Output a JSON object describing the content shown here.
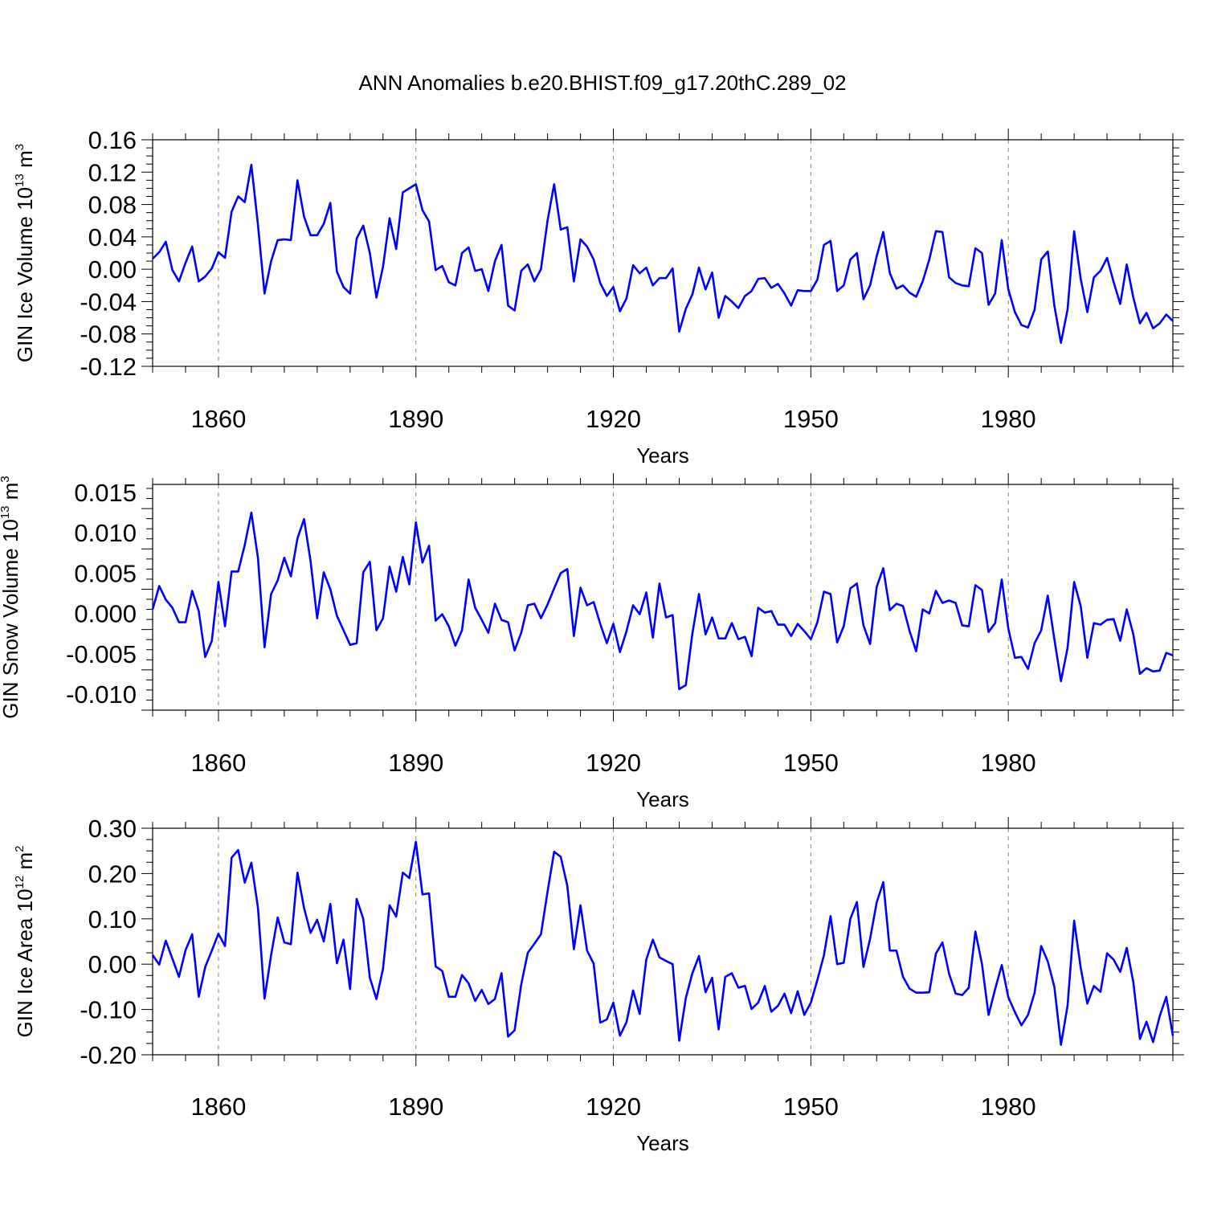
{
  "title": "ANN Anomalies b.e20.BHIST.f09_g17.20thC.289_02",
  "colors": {
    "line": "#0000ff",
    "axis": "#000000",
    "grid": "#888888"
  },
  "chart_data": [
    {
      "type": "line",
      "id": "ice-volume",
      "ylabel_main": "GIN Ice Volume 10",
      "ylabel_exp": "13",
      "ylabel_unit": " m",
      "ylabel_unit_exp": "3",
      "xlabel": "Years",
      "xlim": [
        1850,
        2005
      ],
      "ylim": [
        -0.12,
        0.16
      ],
      "yticks": [
        -0.12,
        -0.08,
        -0.04,
        0.0,
        0.04,
        0.08,
        0.12,
        0.16
      ],
      "ytick_labels": [
        "-0.12",
        "-0.08",
        "-0.04",
        "0.00",
        "0.04",
        "0.08",
        "0.12",
        "0.16"
      ],
      "xticks": [
        1860,
        1890,
        1920,
        1950,
        1980
      ],
      "xtick_labels": [
        "1860",
        "1890",
        "1920",
        "1950",
        "1980"
      ],
      "x_start": 1850,
      "values": [
        0.013,
        0.021,
        0.034,
        -0.001,
        -0.015,
        0.008,
        0.028,
        -0.015,
        -0.009,
        0.001,
        0.021,
        0.014,
        0.071,
        0.09,
        0.083,
        0.129,
        0.055,
        -0.03,
        0.01,
        0.036,
        0.037,
        0.036,
        0.11,
        0.065,
        0.042,
        0.042,
        0.056,
        0.082,
        -0.003,
        -0.022,
        -0.03,
        0.038,
        0.054,
        0.02,
        -0.035,
        0.003,
        0.063,
        0.025,
        0.095,
        0.1,
        0.105,
        0.073,
        0.059,
        -0.001,
        0.004,
        -0.016,
        -0.02,
        0.02,
        0.027,
        -0.002,
        0.0,
        -0.027,
        0.01,
        0.03,
        -0.045,
        -0.051,
        -0.002,
        0.006,
        -0.015,
        0.0,
        0.06,
        0.105,
        0.049,
        0.052,
        -0.015,
        0.037,
        0.028,
        0.012,
        -0.017,
        -0.033,
        -0.022,
        -0.052,
        -0.036,
        0.005,
        -0.005,
        0.002,
        -0.02,
        -0.011,
        -0.011,
        0.001,
        -0.077,
        -0.049,
        -0.031,
        0.002,
        -0.025,
        -0.004,
        -0.06,
        -0.033,
        -0.04,
        -0.048,
        -0.033,
        -0.027,
        -0.012,
        -0.011,
        -0.023,
        -0.018,
        -0.03,
        -0.045,
        -0.026,
        -0.027,
        -0.027,
        -0.013,
        0.03,
        0.035,
        -0.027,
        -0.02,
        0.012,
        0.02,
        -0.037,
        -0.02,
        0.016,
        0.046,
        -0.005,
        -0.024,
        -0.02,
        -0.029,
        -0.034,
        -0.015,
        0.012,
        0.047,
        0.046,
        -0.01,
        -0.017,
        -0.02,
        -0.021,
        0.026,
        0.02,
        -0.044,
        -0.03,
        0.036,
        -0.025,
        -0.053,
        -0.069,
        -0.072,
        -0.05,
        0.012,
        0.022,
        -0.045,
        -0.091,
        -0.05,
        0.047,
        -0.012,
        -0.053,
        -0.01,
        -0.002,
        0.014,
        -0.016,
        -0.043,
        0.006,
        -0.035,
        -0.067,
        -0.054,
        -0.073,
        -0.067,
        -0.056,
        -0.064
      ]
    },
    {
      "type": "line",
      "id": "snow-volume",
      "ylabel_main": "GIN Snow Volume 10",
      "ylabel_exp": "13",
      "ylabel_unit": " m",
      "ylabel_unit_exp": "3",
      "xlabel": "Years",
      "xlim": [
        1850,
        2005
      ],
      "ylim": [
        -0.012,
        0.016
      ],
      "yticks": [
        -0.01,
        -0.005,
        0.0,
        0.005,
        0.01,
        0.015
      ],
      "ytick_labels": [
        "-0.010",
        "-0.005",
        "0.000",
        "0.005",
        "0.010",
        "0.015"
      ],
      "xticks": [
        1860,
        1890,
        1920,
        1950,
        1980
      ],
      "xtick_labels": [
        "1860",
        "1890",
        "1920",
        "1950",
        "1980"
      ],
      "x_start": 1850,
      "values": [
        0.0005,
        0.0034,
        0.0017,
        0.0007,
        -0.0011,
        -0.0011,
        0.0028,
        0.0003,
        -0.0054,
        -0.0034,
        0.0039,
        -0.0016,
        0.0052,
        0.0052,
        0.0085,
        0.0125,
        0.0069,
        -0.0042,
        0.0024,
        0.0041,
        0.0069,
        0.0046,
        0.0093,
        0.0117,
        0.0065,
        -0.0006,
        0.0051,
        0.003,
        -0.0003,
        -0.0021,
        -0.0039,
        -0.0037,
        0.0051,
        0.0064,
        -0.0021,
        -0.0006,
        0.0058,
        0.0027,
        0.007,
        0.0036,
        0.0113,
        0.0063,
        0.0084,
        -0.0009,
        -0.0001,
        -0.0016,
        -0.004,
        -0.0021,
        0.0042,
        0.0007,
        -0.0008,
        -0.0024,
        0.0012,
        -0.0008,
        -0.0011,
        -0.0046,
        -0.0024,
        0.001,
        0.0012,
        -0.0006,
        0.0011,
        0.0031,
        0.005,
        0.0055,
        -0.0028,
        0.0032,
        0.001,
        0.0014,
        -0.0013,
        -0.0037,
        -0.0013,
        -0.0048,
        -0.0022,
        0.001,
        -0.0001,
        0.0026,
        -0.003,
        0.0037,
        -0.0005,
        -0.0002,
        -0.0094,
        -0.0089,
        -0.0025,
        0.0024,
        -0.0026,
        -0.0005,
        -0.0031,
        -0.0031,
        -0.0012,
        -0.0032,
        -0.0029,
        -0.0053,
        0.0007,
        0.0001,
        0.0003,
        -0.0014,
        -0.0014,
        -0.0028,
        -0.0013,
        -0.0022,
        -0.0032,
        -0.0011,
        0.0027,
        0.0024,
        -0.0036,
        -0.0016,
        0.0031,
        0.0037,
        -0.0015,
        -0.0038,
        0.0033,
        0.0056,
        0.0004,
        0.0012,
        0.0009,
        -0.0022,
        -0.0047,
        0.0005,
        0.0,
        0.0028,
        0.0013,
        0.0016,
        0.0013,
        -0.0015,
        -0.0016,
        0.0035,
        0.0029,
        -0.0023,
        -0.0012,
        0.0042,
        -0.0019,
        -0.0055,
        -0.0054,
        -0.0069,
        -0.0037,
        -0.0021,
        0.0022,
        -0.0032,
        -0.0084,
        -0.0043,
        0.0039,
        0.0009,
        -0.0055,
        -0.0012,
        -0.0014,
        -0.0008,
        -0.0007,
        -0.0034,
        0.0005,
        -0.0026,
        -0.0075,
        -0.0068,
        -0.0072,
        -0.0071,
        -0.0049,
        -0.0052
      ]
    },
    {
      "type": "line",
      "id": "ice-area",
      "ylabel_main": "GIN Ice Area 10",
      "ylabel_exp": "12",
      "ylabel_unit": " m",
      "ylabel_unit_exp": "2",
      "xlabel": "Years",
      "xlim": [
        1850,
        2005
      ],
      "ylim": [
        -0.2,
        0.3
      ],
      "yticks": [
        -0.2,
        -0.1,
        0.0,
        0.1,
        0.2,
        0.3
      ],
      "ytick_labels": [
        "-0.20",
        "-0.10",
        "0.00",
        "0.10",
        "0.20",
        "0.30"
      ],
      "xticks": [
        1860,
        1890,
        1920,
        1950,
        1980
      ],
      "xtick_labels": [
        "1860",
        "1890",
        "1920",
        "1950",
        "1980"
      ],
      "x_start": 1850,
      "values": [
        0.02,
        -0.001,
        0.052,
        0.012,
        -0.028,
        0.031,
        0.066,
        -0.072,
        -0.006,
        0.03,
        0.067,
        0.04,
        0.235,
        0.252,
        0.18,
        0.224,
        0.125,
        -0.076,
        0.02,
        0.103,
        0.048,
        0.044,
        0.202,
        0.124,
        0.069,
        0.098,
        0.05,
        0.133,
        0.002,
        0.054,
        -0.055,
        0.144,
        0.1,
        -0.03,
        -0.077,
        -0.01,
        0.13,
        0.105,
        0.202,
        0.19,
        0.27,
        0.154,
        0.156,
        -0.005,
        -0.015,
        -0.072,
        -0.072,
        -0.024,
        -0.042,
        -0.081,
        -0.057,
        -0.088,
        -0.077,
        -0.02,
        -0.16,
        -0.146,
        -0.045,
        0.025,
        0.045,
        0.066,
        0.16,
        0.248,
        0.237,
        0.173,
        0.033,
        0.13,
        0.03,
        0.001,
        -0.129,
        -0.122,
        -0.085,
        -0.158,
        -0.128,
        -0.058,
        -0.11,
        0.01,
        0.054,
        0.015,
        0.007,
        0.0,
        -0.169,
        -0.075,
        -0.02,
        0.018,
        -0.062,
        -0.03,
        -0.144,
        -0.028,
        -0.02,
        -0.052,
        -0.048,
        -0.099,
        -0.085,
        -0.048,
        -0.105,
        -0.092,
        -0.065,
        -0.108,
        -0.06,
        -0.112,
        -0.085,
        -0.035,
        0.02,
        0.106,
        0.0,
        0.003,
        0.1,
        0.137,
        -0.006,
        0.056,
        0.136,
        0.181,
        0.03,
        0.03,
        -0.028,
        -0.054,
        -0.063,
        -0.063,
        -0.062,
        0.023,
        0.048,
        -0.021,
        -0.065,
        -0.068,
        -0.052,
        0.072,
        0.0,
        -0.112,
        -0.055,
        -0.002,
        -0.073,
        -0.106,
        -0.135,
        -0.112,
        -0.063,
        0.04,
        0.006,
        -0.05,
        -0.178,
        -0.092,
        0.096,
        -0.008,
        -0.087,
        -0.048,
        -0.061,
        0.024,
        0.01,
        -0.017,
        0.036,
        -0.04,
        -0.165,
        -0.127,
        -0.172,
        -0.115,
        -0.072,
        -0.158
      ]
    }
  ]
}
